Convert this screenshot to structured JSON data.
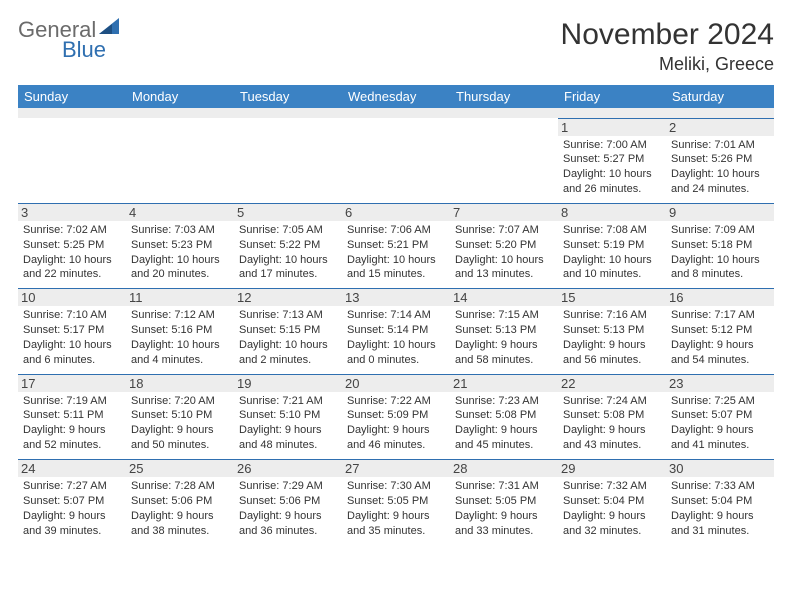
{
  "brand": {
    "word1": "General",
    "word2": "Blue"
  },
  "title": "November 2024",
  "location": "Meliki, Greece",
  "columns": [
    "Sunday",
    "Monday",
    "Tuesday",
    "Wednesday",
    "Thursday",
    "Friday",
    "Saturday"
  ],
  "colors": {
    "header_bg": "#3b82c4",
    "header_text": "#ffffff",
    "rule": "#2f6fb0",
    "gray_row": "#ededed",
    "brand_gray": "#6b6b6b",
    "brand_blue": "#2f6fb0",
    "text": "#333333"
  },
  "days": [
    {
      "n": "1",
      "sunrise": "7:00 AM",
      "sunset": "5:27 PM",
      "daylight": "10 hours and 26 minutes."
    },
    {
      "n": "2",
      "sunrise": "7:01 AM",
      "sunset": "5:26 PM",
      "daylight": "10 hours and 24 minutes."
    },
    {
      "n": "3",
      "sunrise": "7:02 AM",
      "sunset": "5:25 PM",
      "daylight": "10 hours and 22 minutes."
    },
    {
      "n": "4",
      "sunrise": "7:03 AM",
      "sunset": "5:23 PM",
      "daylight": "10 hours and 20 minutes."
    },
    {
      "n": "5",
      "sunrise": "7:05 AM",
      "sunset": "5:22 PM",
      "daylight": "10 hours and 17 minutes."
    },
    {
      "n": "6",
      "sunrise": "7:06 AM",
      "sunset": "5:21 PM",
      "daylight": "10 hours and 15 minutes."
    },
    {
      "n": "7",
      "sunrise": "7:07 AM",
      "sunset": "5:20 PM",
      "daylight": "10 hours and 13 minutes."
    },
    {
      "n": "8",
      "sunrise": "7:08 AM",
      "sunset": "5:19 PM",
      "daylight": "10 hours and 10 minutes."
    },
    {
      "n": "9",
      "sunrise": "7:09 AM",
      "sunset": "5:18 PM",
      "daylight": "10 hours and 8 minutes."
    },
    {
      "n": "10",
      "sunrise": "7:10 AM",
      "sunset": "5:17 PM",
      "daylight": "10 hours and 6 minutes."
    },
    {
      "n": "11",
      "sunrise": "7:12 AM",
      "sunset": "5:16 PM",
      "daylight": "10 hours and 4 minutes."
    },
    {
      "n": "12",
      "sunrise": "7:13 AM",
      "sunset": "5:15 PM",
      "daylight": "10 hours and 2 minutes."
    },
    {
      "n": "13",
      "sunrise": "7:14 AM",
      "sunset": "5:14 PM",
      "daylight": "10 hours and 0 minutes."
    },
    {
      "n": "14",
      "sunrise": "7:15 AM",
      "sunset": "5:13 PM",
      "daylight": "9 hours and 58 minutes."
    },
    {
      "n": "15",
      "sunrise": "7:16 AM",
      "sunset": "5:13 PM",
      "daylight": "9 hours and 56 minutes."
    },
    {
      "n": "16",
      "sunrise": "7:17 AM",
      "sunset": "5:12 PM",
      "daylight": "9 hours and 54 minutes."
    },
    {
      "n": "17",
      "sunrise": "7:19 AM",
      "sunset": "5:11 PM",
      "daylight": "9 hours and 52 minutes."
    },
    {
      "n": "18",
      "sunrise": "7:20 AM",
      "sunset": "5:10 PM",
      "daylight": "9 hours and 50 minutes."
    },
    {
      "n": "19",
      "sunrise": "7:21 AM",
      "sunset": "5:10 PM",
      "daylight": "9 hours and 48 minutes."
    },
    {
      "n": "20",
      "sunrise": "7:22 AM",
      "sunset": "5:09 PM",
      "daylight": "9 hours and 46 minutes."
    },
    {
      "n": "21",
      "sunrise": "7:23 AM",
      "sunset": "5:08 PM",
      "daylight": "9 hours and 45 minutes."
    },
    {
      "n": "22",
      "sunrise": "7:24 AM",
      "sunset": "5:08 PM",
      "daylight": "9 hours and 43 minutes."
    },
    {
      "n": "23",
      "sunrise": "7:25 AM",
      "sunset": "5:07 PM",
      "daylight": "9 hours and 41 minutes."
    },
    {
      "n": "24",
      "sunrise": "7:27 AM",
      "sunset": "5:07 PM",
      "daylight": "9 hours and 39 minutes."
    },
    {
      "n": "25",
      "sunrise": "7:28 AM",
      "sunset": "5:06 PM",
      "daylight": "9 hours and 38 minutes."
    },
    {
      "n": "26",
      "sunrise": "7:29 AM",
      "sunset": "5:06 PM",
      "daylight": "9 hours and 36 minutes."
    },
    {
      "n": "27",
      "sunrise": "7:30 AM",
      "sunset": "5:05 PM",
      "daylight": "9 hours and 35 minutes."
    },
    {
      "n": "28",
      "sunrise": "7:31 AM",
      "sunset": "5:05 PM",
      "daylight": "9 hours and 33 minutes."
    },
    {
      "n": "29",
      "sunrise": "7:32 AM",
      "sunset": "5:04 PM",
      "daylight": "9 hours and 32 minutes."
    },
    {
      "n": "30",
      "sunrise": "7:33 AM",
      "sunset": "5:04 PM",
      "daylight": "9 hours and 31 minutes."
    }
  ],
  "layout": {
    "weeks": [
      [
        null,
        null,
        null,
        null,
        null,
        0,
        1
      ],
      [
        2,
        3,
        4,
        5,
        6,
        7,
        8
      ],
      [
        9,
        10,
        11,
        12,
        13,
        14,
        15
      ],
      [
        16,
        17,
        18,
        19,
        20,
        21,
        22
      ],
      [
        23,
        24,
        25,
        26,
        27,
        28,
        29
      ]
    ]
  },
  "labels": {
    "sunrise_prefix": "Sunrise: ",
    "sunset_prefix": "Sunset: ",
    "daylight_prefix": "Daylight: "
  }
}
